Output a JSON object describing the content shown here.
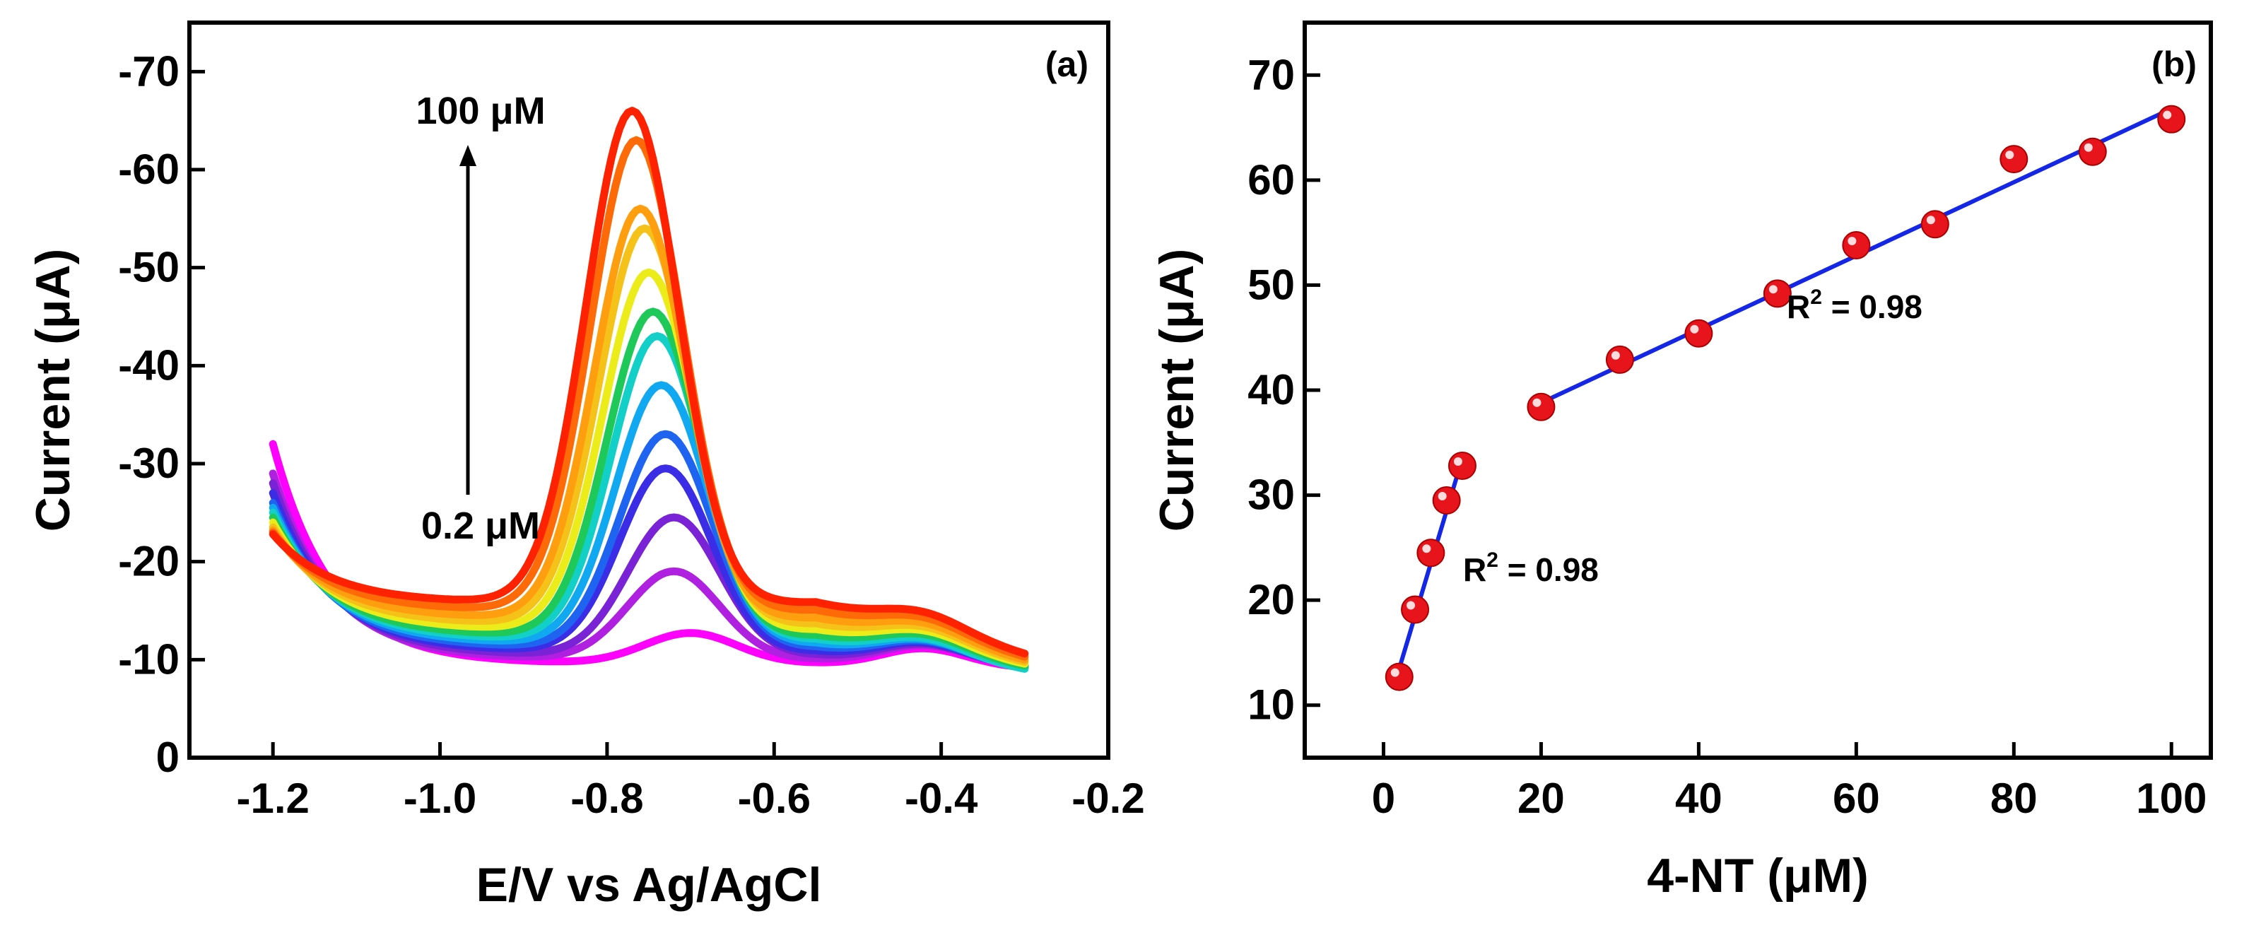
{
  "chart_data": [
    {
      "type": "line",
      "panel_label": "(a)",
      "xlabel": "E/V vs Ag/AgCl",
      "ylabel": "Current (μA)",
      "xlim": [
        -1.3,
        -0.2
      ],
      "ylim": [
        0,
        -75
      ],
      "y_inverted": true,
      "xticks": [
        -1.2,
        -1.0,
        -0.8,
        -0.6,
        -0.4,
        -0.2
      ],
      "xtick_labels": [
        "-1.2",
        "-1.0",
        "-0.8",
        "-0.6",
        "-0.4",
        "-0.2"
      ],
      "yticks": [
        0,
        -10,
        -20,
        -30,
        -40,
        -50,
        -60,
        -70
      ],
      "ytick_labels": [
        "0",
        "-10",
        "-20",
        "-30",
        "-40",
        "-50",
        "-60",
        "-70"
      ],
      "annotation_top": "100 μM",
      "annotation_bottom": "0.2 μM",
      "series_colors": [
        "#ff00ff",
        "#b020e0",
        "#7a22d6",
        "#3b2ce6",
        "#1e64f0",
        "#10a8f0",
        "#12d0c8",
        "#1ec95a",
        "#ecec1a",
        "#f5c21a",
        "#ff9f10",
        "#ff6a08",
        "#ff2200"
      ],
      "series": [
        {
          "peak_x": -0.7,
          "peak_y": -12.7,
          "base_y": -9.6,
          "start_y": -32.0,
          "end_y": -9.0
        },
        {
          "peak_x": -0.72,
          "peak_y": -19.0,
          "base_y": -10.0,
          "start_y": -29.0,
          "end_y": -9.2
        },
        {
          "peak_x": -0.72,
          "peak_y": -24.5,
          "base_y": -10.4,
          "start_y": -28.0,
          "end_y": -9.0
        },
        {
          "peak_x": -0.73,
          "peak_y": -29.5,
          "base_y": -10.8,
          "start_y": -27.0,
          "end_y": -8.8
        },
        {
          "peak_x": -0.73,
          "peak_y": -33.0,
          "base_y": -11.2,
          "start_y": -26.0,
          "end_y": -8.6
        },
        {
          "peak_x": -0.735,
          "peak_y": -38.0,
          "base_y": -11.6,
          "start_y": -25.5,
          "end_y": -8.4
        },
        {
          "peak_x": -0.74,
          "peak_y": -43.0,
          "base_y": -12.0,
          "start_y": -25.0,
          "end_y": -8.2
        },
        {
          "peak_x": -0.745,
          "peak_y": -45.5,
          "base_y": -12.4,
          "start_y": -24.5,
          "end_y": -8.5
        },
        {
          "peak_x": -0.75,
          "peak_y": -49.5,
          "base_y": -13.0,
          "start_y": -24.0,
          "end_y": -8.6
        },
        {
          "peak_x": -0.755,
          "peak_y": -54.0,
          "base_y": -13.6,
          "start_y": -23.5,
          "end_y": -8.7
        },
        {
          "peak_x": -0.76,
          "peak_y": -56.0,
          "base_y": -14.2,
          "start_y": -23.2,
          "end_y": -8.8
        },
        {
          "peak_x": -0.765,
          "peak_y": -63.0,
          "base_y": -15.0,
          "start_y": -23.0,
          "end_y": -9.0
        },
        {
          "peak_x": -0.77,
          "peak_y": -66.0,
          "base_y": -15.8,
          "start_y": -22.8,
          "end_y": -9.2
        }
      ]
    },
    {
      "type": "scatter",
      "panel_label": "(b)",
      "xlabel": "4-NT (μM)",
      "ylabel": "Current (μA)",
      "xlim": [
        -10,
        105
      ],
      "ylim": [
        5,
        75
      ],
      "xticks": [
        0,
        20,
        40,
        60,
        80,
        100
      ],
      "xtick_labels": [
        "0",
        "20",
        "40",
        "60",
        "80",
        "100"
      ],
      "yticks": [
        10,
        20,
        30,
        40,
        50,
        60,
        70
      ],
      "ytick_labels": [
        "10",
        "20",
        "30",
        "40",
        "50",
        "60",
        "70"
      ],
      "marker_color": "#e8141c",
      "fit_color": "#1426e6",
      "points": [
        {
          "x": 2,
          "y": 12.7
        },
        {
          "x": 4,
          "y": 19.1
        },
        {
          "x": 6,
          "y": 24.5
        },
        {
          "x": 8,
          "y": 29.5
        },
        {
          "x": 10,
          "y": 32.8
        },
        {
          "x": 20,
          "y": 38.4
        },
        {
          "x": 30,
          "y": 42.9
        },
        {
          "x": 40,
          "y": 45.4
        },
        {
          "x": 50,
          "y": 49.2
        },
        {
          "x": 60,
          "y": 53.8
        },
        {
          "x": 70,
          "y": 55.8
        },
        {
          "x": 80,
          "y": 62.0
        },
        {
          "x": 90,
          "y": 62.7
        },
        {
          "x": 100,
          "y": 65.8
        }
      ],
      "fits": [
        {
          "x": [
            2,
            10
          ],
          "y": [
            13.5,
            33.5
          ],
          "r2_prefix": "R",
          "r2_sup": "2",
          "r2_value": " = 0.98"
        },
        {
          "x": [
            20,
            100
          ],
          "y": [
            38.8,
            66.8
          ],
          "r2_prefix": "R",
          "r2_sup": "2",
          "r2_value": " = 0.98"
        }
      ]
    }
  ]
}
